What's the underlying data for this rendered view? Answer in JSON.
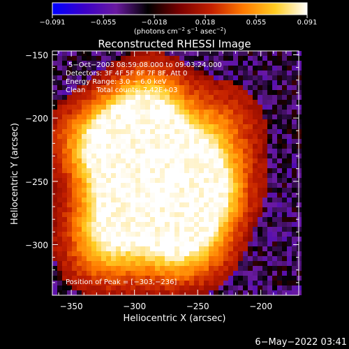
{
  "chart_data": {
    "type": "heatmap",
    "title": "Reconstructed RHESSI Image",
    "xlabel": "Heliocentric X (arcsec)",
    "ylabel": "Heliocentric Y (arcsec)",
    "xlim": [
      -365,
      -170
    ],
    "ylim": [
      -340,
      -147
    ],
    "x_ticks": [
      -350,
      -300,
      -250,
      -200
    ],
    "x_tick_labels": [
      "−350",
      "−300",
      "−250",
      "−200"
    ],
    "y_ticks": [
      -150,
      -200,
      -250,
      -300
    ],
    "y_tick_labels": [
      "−150",
      "−200",
      "−250",
      "−300"
    ],
    "colorbar": {
      "range": [
        -0.091,
        0.091
      ],
      "tick_labels": [
        "−0.091",
        "−0.055",
        "−0.018",
        "0.018",
        "0.055",
        "0.091"
      ],
      "unit_label_parts": [
        "(photons cm",
        "−2",
        " s",
        "−1",
        " asec",
        "−2",
        ")"
      ],
      "colors": [
        "#0000ff",
        "#3b00c8",
        "#6a1aa0",
        "#000000",
        "#7a0000",
        "#c42000",
        "#ff7a00",
        "#ffcc22",
        "#ffffff"
      ]
    },
    "annotations": [
      "5−Oct−2003 08:59:08.000 to 09:03:24.000",
      "Detectors: 3F 4F 5F 6F 7F 8F, Att 0",
      "Energy Range: 3.0 − 6.0 keV",
      "Clean     Total counts: 7.42E+03",
      "Position of Peak = [−303,−236]"
    ],
    "peak": [
      -303,
      -236
    ],
    "sources": [
      {
        "x": -300,
        "y": -215,
        "value": 1.0
      },
      {
        "x": -303,
        "y": -236,
        "value": 0.98
      },
      {
        "x": -258,
        "y": -268,
        "value": 0.95
      },
      {
        "x": -315,
        "y": -275,
        "value": 0.85
      },
      {
        "x": -265,
        "y": -230,
        "value": 0.8
      },
      {
        "x": -335,
        "y": -220,
        "value": 0.55
      },
      {
        "x": -288,
        "y": -188,
        "value": 0.65
      },
      {
        "x": -240,
        "y": -252,
        "value": 0.7
      },
      {
        "x": -255,
        "y": -300,
        "value": 0.55
      },
      {
        "x": -325,
        "y": -305,
        "value": 0.5
      },
      {
        "x": -280,
        "y": -300,
        "value": 0.45
      },
      {
        "x": -230,
        "y": -205,
        "value": 0.35
      }
    ]
  },
  "timestamp": "6−May−2022 03:41"
}
